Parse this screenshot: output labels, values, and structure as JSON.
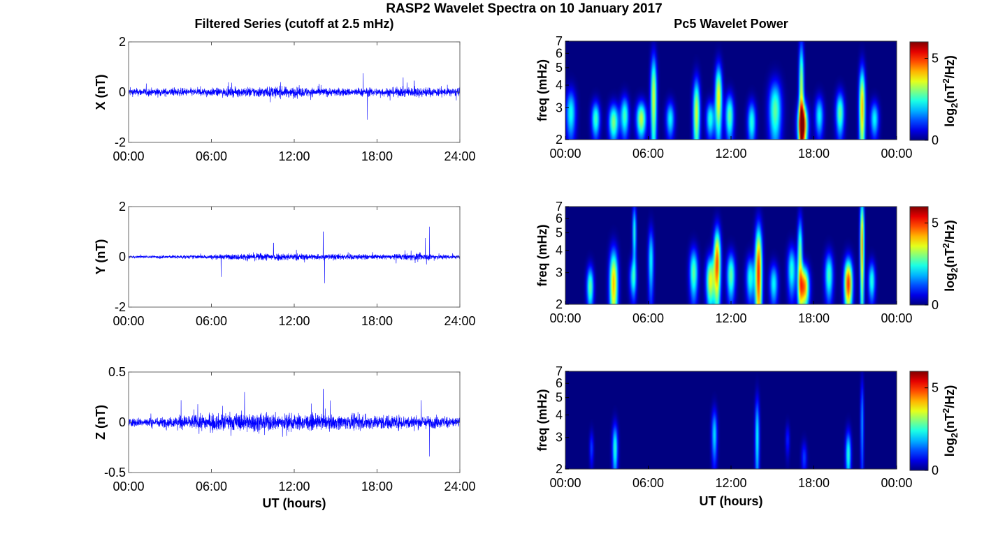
{
  "figure": {
    "title": "RASP2 Wavelet Spectra on 10 January 2017",
    "left_column_title": "Filtered Series (cutoff at 2.5 mHz)",
    "right_column_title": "Pc5 Wavelet Power",
    "xlabel": "UT (hours)"
  },
  "chart_data": [
    {
      "type": "line",
      "panel": "X time series",
      "series": [
        {
          "values_note_text": "",
          "color": "#0000ff"
        }
      ],
      "ylabel": "X (nT)",
      "xlim_hours": [
        0,
        24
      ],
      "x_ticks": [
        "00:00",
        "06:00",
        "12:00",
        "18:00",
        "24:00"
      ],
      "ylim": [
        -2,
        2
      ],
      "y_ticks": [
        "2",
        "0",
        "-2"
      ],
      "typical_amplitude_nT": 0.15,
      "spikes": [
        {
          "x_hours": 17.3,
          "y": -1.1
        },
        {
          "x_hours": 17.0,
          "y": 0.75
        },
        {
          "x_hours": 11.0,
          "y": 0.4
        },
        {
          "x_hours": 20.7,
          "y": 0.45
        }
      ]
    },
    {
      "type": "line",
      "panel": "Y time series",
      "series": [
        {
          "color": "#0000ff"
        }
      ],
      "ylabel": "Y (nT)",
      "xlim_hours": [
        0,
        24
      ],
      "x_ticks": [
        "00:00",
        "06:00",
        "12:00",
        "18:00",
        "24:00"
      ],
      "ylim": [
        -2,
        2
      ],
      "y_ticks": [
        "2",
        "0",
        "-2"
      ],
      "typical_amplitude_nT": 0.12,
      "spikes": [
        {
          "x_hours": 14.1,
          "y": 1.0
        },
        {
          "x_hours": 14.2,
          "y": -1.05
        },
        {
          "x_hours": 21.8,
          "y": 1.2
        },
        {
          "x_hours": 21.5,
          "y": 0.75
        },
        {
          "x_hours": 6.7,
          "y": -0.8
        },
        {
          "x_hours": 10.5,
          "y": 0.55
        }
      ]
    },
    {
      "type": "line",
      "panel": "Z time series",
      "series": [
        {
          "color": "#0000ff"
        }
      ],
      "ylabel": "Z (nT)",
      "xlim_hours": [
        0,
        24
      ],
      "x_ticks": [
        "00:00",
        "06:00",
        "12:00",
        "18:00",
        "24:00"
      ],
      "ylim": [
        -0.5,
        0.5
      ],
      "y_ticks": [
        "0.5",
        "0",
        "-0.5"
      ],
      "typical_amplitude_nT": 0.06,
      "spikes": [
        {
          "x_hours": 14.1,
          "y": 0.33
        },
        {
          "x_hours": 8.4,
          "y": 0.3
        },
        {
          "x_hours": 21.8,
          "y": -0.34
        },
        {
          "x_hours": 21.2,
          "y": 0.22
        },
        {
          "x_hours": 3.8,
          "y": 0.22
        }
      ]
    },
    {
      "type": "heatmap",
      "panel": "X wavelet power",
      "ylabel": "freq (mHz)",
      "xlim_hours": [
        0,
        24
      ],
      "x_ticks": [
        "00:00",
        "06:00",
        "12:00",
        "18:00",
        "00:00"
      ],
      "ylim_mHz": [
        2,
        7
      ],
      "y_scale": "log",
      "y_ticks": [
        "7",
        "6",
        "5",
        "4",
        "3",
        "2"
      ],
      "colorbar": {
        "label_base": "log",
        "label_sub": "2",
        "label_mid": "(nT",
        "label_sup": "2",
        "label_end": "/Hz)",
        "ticks": [
          "5",
          "0"
        ],
        "range": [
          0,
          6
        ]
      },
      "blobs": [
        {
          "t": 0.4,
          "f": 2.8,
          "p": 2.5,
          "w": 0.35,
          "h": 0.9
        },
        {
          "t": 2.2,
          "f": 2.6,
          "p": 2.8,
          "w": 0.3,
          "h": 0.6
        },
        {
          "t": 3.5,
          "f": 2.5,
          "p": 3.2,
          "w": 0.35,
          "h": 0.6
        },
        {
          "t": 4.3,
          "f": 2.7,
          "p": 2.8,
          "w": 0.3,
          "h": 0.7
        },
        {
          "t": 5.5,
          "f": 2.6,
          "p": 3.6,
          "w": 0.35,
          "h": 0.6
        },
        {
          "t": 6.4,
          "f": 3.4,
          "p": 3.7,
          "w": 0.22,
          "h": 2.2
        },
        {
          "t": 7.6,
          "f": 2.6,
          "p": 2.4,
          "w": 0.3,
          "h": 0.6
        },
        {
          "t": 9.5,
          "f": 2.8,
          "p": 3.7,
          "w": 0.25,
          "h": 1.4
        },
        {
          "t": 10.5,
          "f": 2.6,
          "p": 2.6,
          "w": 0.3,
          "h": 0.6
        },
        {
          "t": 11.1,
          "f": 3.4,
          "p": 4.0,
          "w": 0.25,
          "h": 1.6
        },
        {
          "t": 11.9,
          "f": 2.7,
          "p": 3.0,
          "w": 0.3,
          "h": 0.8
        },
        {
          "t": 13.5,
          "f": 2.5,
          "p": 2.6,
          "w": 0.3,
          "h": 0.7
        },
        {
          "t": 15.2,
          "f": 2.9,
          "p": 3.0,
          "w": 0.45,
          "h": 1.2
        },
        {
          "t": 17.2,
          "f": 2.4,
          "p": 5.5,
          "w": 0.35,
          "h": 0.7
        },
        {
          "t": 17.1,
          "f": 3.6,
          "p": 3.6,
          "w": 0.18,
          "h": 3.0
        },
        {
          "t": 18.4,
          "f": 2.7,
          "p": 2.4,
          "w": 0.3,
          "h": 0.7
        },
        {
          "t": 19.9,
          "f": 2.8,
          "p": 3.0,
          "w": 0.3,
          "h": 0.8
        },
        {
          "t": 21.5,
          "f": 3.0,
          "p": 4.4,
          "w": 0.22,
          "h": 1.8
        },
        {
          "t": 22.4,
          "f": 2.6,
          "p": 2.4,
          "w": 0.3,
          "h": 0.6
        }
      ]
    },
    {
      "type": "heatmap",
      "panel": "Y wavelet power",
      "ylabel": "freq (mHz)",
      "xlim_hours": [
        0,
        24
      ],
      "x_ticks": [
        "00:00",
        "06:00",
        "12:00",
        "18:00",
        "00:00"
      ],
      "ylim_mHz": [
        2,
        7
      ],
      "y_scale": "log",
      "y_ticks": [
        "7",
        "6",
        "5",
        "4",
        "3",
        "2"
      ],
      "colorbar": {
        "label_base": "log",
        "label_sub": "2",
        "label_mid": "(nT",
        "label_sup": "2",
        "label_end": "/Hz)",
        "ticks": [
          "5",
          "0"
        ],
        "range": [
          0,
          6
        ]
      },
      "blobs": [
        {
          "t": 1.8,
          "f": 2.5,
          "p": 3.0,
          "w": 0.25,
          "h": 0.7
        },
        {
          "t": 3.5,
          "f": 2.6,
          "p": 4.4,
          "w": 0.3,
          "h": 1.3
        },
        {
          "t": 4.9,
          "f": 2.8,
          "p": 2.2,
          "w": 0.25,
          "h": 0.7
        },
        {
          "t": 5.0,
          "f": 5.0,
          "p": 2.6,
          "w": 0.14,
          "h": 2.0
        },
        {
          "t": 6.2,
          "f": 3.5,
          "p": 2.4,
          "w": 0.2,
          "h": 1.6
        },
        {
          "t": 9.3,
          "f": 3.0,
          "p": 3.0,
          "w": 0.3,
          "h": 1.0
        },
        {
          "t": 10.5,
          "f": 2.7,
          "p": 3.8,
          "w": 0.3,
          "h": 0.9
        },
        {
          "t": 11.0,
          "f": 3.4,
          "p": 5.0,
          "w": 0.25,
          "h": 1.7
        },
        {
          "t": 12.0,
          "f": 2.9,
          "p": 3.0,
          "w": 0.3,
          "h": 0.9
        },
        {
          "t": 13.4,
          "f": 2.8,
          "p": 2.6,
          "w": 0.3,
          "h": 0.8
        },
        {
          "t": 14.0,
          "f": 3.0,
          "p": 5.3,
          "w": 0.25,
          "h": 2.2
        },
        {
          "t": 15.1,
          "f": 2.6,
          "p": 2.4,
          "w": 0.3,
          "h": 0.7
        },
        {
          "t": 16.4,
          "f": 3.1,
          "p": 2.6,
          "w": 0.3,
          "h": 1.0
        },
        {
          "t": 17.3,
          "f": 2.5,
          "p": 4.8,
          "w": 0.35,
          "h": 0.7
        },
        {
          "t": 17.0,
          "f": 3.6,
          "p": 3.3,
          "w": 0.18,
          "h": 2.2
        },
        {
          "t": 19.1,
          "f": 2.9,
          "p": 2.8,
          "w": 0.3,
          "h": 0.9
        },
        {
          "t": 20.5,
          "f": 2.6,
          "p": 5.3,
          "w": 0.3,
          "h": 0.9
        },
        {
          "t": 21.5,
          "f": 4.3,
          "p": 4.6,
          "w": 0.15,
          "h": 3.2
        },
        {
          "t": 22.2,
          "f": 2.7,
          "p": 2.6,
          "w": 0.25,
          "h": 0.7
        }
      ]
    },
    {
      "type": "heatmap",
      "panel": "Z wavelet power",
      "ylabel": "freq (mHz)",
      "xlim_hours": [
        0,
        24
      ],
      "x_ticks": [
        "00:00",
        "06:00",
        "12:00",
        "18:00",
        "00:00"
      ],
      "ylim_mHz": [
        2,
        7
      ],
      "y_scale": "log",
      "y_ticks": [
        "7",
        "6",
        "5",
        "4",
        "3",
        "2"
      ],
      "colorbar": {
        "label_base": "log",
        "label_sub": "2",
        "label_mid": "(nT",
        "label_sup": "2",
        "label_end": "/Hz)",
        "ticks": [
          "5",
          "0"
        ],
        "range": [
          0,
          6
        ]
      },
      "blobs": [
        {
          "t": 3.6,
          "f": 2.6,
          "p": 2.6,
          "w": 0.2,
          "h": 0.9
        },
        {
          "t": 1.9,
          "f": 2.6,
          "p": 1.2,
          "w": 0.15,
          "h": 0.6
        },
        {
          "t": 10.8,
          "f": 3.1,
          "p": 2.2,
          "w": 0.2,
          "h": 1.1
        },
        {
          "t": 13.9,
          "f": 3.0,
          "p": 2.4,
          "w": 0.16,
          "h": 1.8
        },
        {
          "t": 17.3,
          "f": 2.3,
          "p": 1.2,
          "w": 0.2,
          "h": 0.5
        },
        {
          "t": 20.5,
          "f": 2.4,
          "p": 2.6,
          "w": 0.2,
          "h": 0.8
        },
        {
          "t": 21.5,
          "f": 3.6,
          "p": 1.8,
          "w": 0.12,
          "h": 2.4
        },
        {
          "t": 16.1,
          "f": 2.9,
          "p": 1.0,
          "w": 0.15,
          "h": 0.6
        }
      ]
    }
  ]
}
